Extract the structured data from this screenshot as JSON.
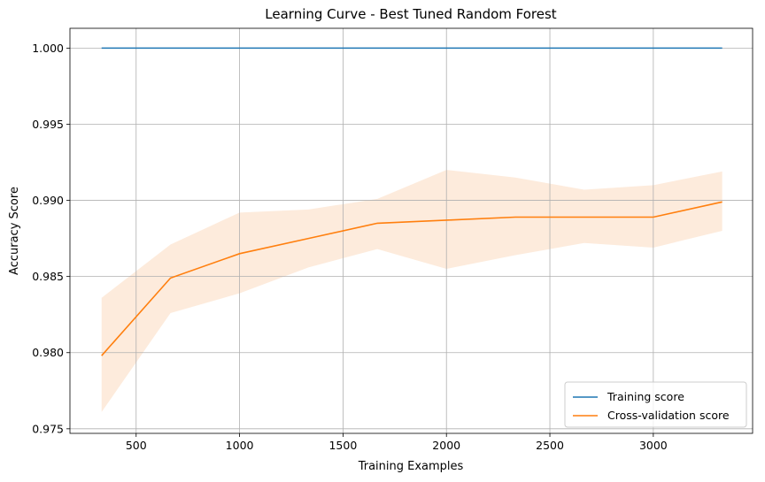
{
  "chart_data": {
    "type": "line",
    "title": "Learning Curve - Best Tuned Random Forest",
    "xlabel": "Training Examples",
    "ylabel": "Accuracy Score",
    "xlim": [
      180,
      3480
    ],
    "ylim": [
      0.9747,
      1.0013
    ],
    "xticks": [
      500,
      1000,
      1500,
      2000,
      2500,
      3000
    ],
    "yticks": [
      0.975,
      0.98,
      0.985,
      0.99,
      0.995,
      1.0
    ],
    "xtick_labels": [
      "500",
      "1000",
      "1500",
      "2000",
      "2500",
      "3000"
    ],
    "ytick_labels": [
      "0.975",
      "0.980",
      "0.985",
      "0.990",
      "0.995",
      "1.000"
    ],
    "grid": true,
    "legend_position": "lower-right",
    "x": [
      333,
      666,
      1000,
      1333,
      1666,
      2000,
      2333,
      2666,
      3000,
      3333
    ],
    "series": [
      {
        "name": "Training score",
        "color": "#1f77b4",
        "values": [
          1.0,
          1.0,
          1.0,
          1.0,
          1.0,
          1.0,
          1.0,
          1.0,
          1.0,
          1.0
        ],
        "band_lower": [
          1.0,
          1.0,
          1.0,
          1.0,
          1.0,
          1.0,
          1.0,
          1.0,
          1.0,
          1.0
        ],
        "band_upper": [
          1.0,
          1.0,
          1.0,
          1.0,
          1.0,
          1.0,
          1.0,
          1.0,
          1.0,
          1.0
        ]
      },
      {
        "name": "Cross-validation score",
        "color": "#ff7f0e",
        "band_color": "#fdebdc",
        "values": [
          0.9798,
          0.9849,
          0.9865,
          0.9875,
          0.9885,
          0.9887,
          0.9889,
          0.9889,
          0.9889,
          0.9899
        ],
        "band_lower": [
          0.9761,
          0.9826,
          0.9839,
          0.9856,
          0.9868,
          0.9855,
          0.9864,
          0.9872,
          0.9869,
          0.988
        ],
        "band_upper": [
          0.9836,
          0.9871,
          0.9892,
          0.9894,
          0.9901,
          0.992,
          0.9915,
          0.9907,
          0.991,
          0.9919
        ]
      }
    ]
  }
}
